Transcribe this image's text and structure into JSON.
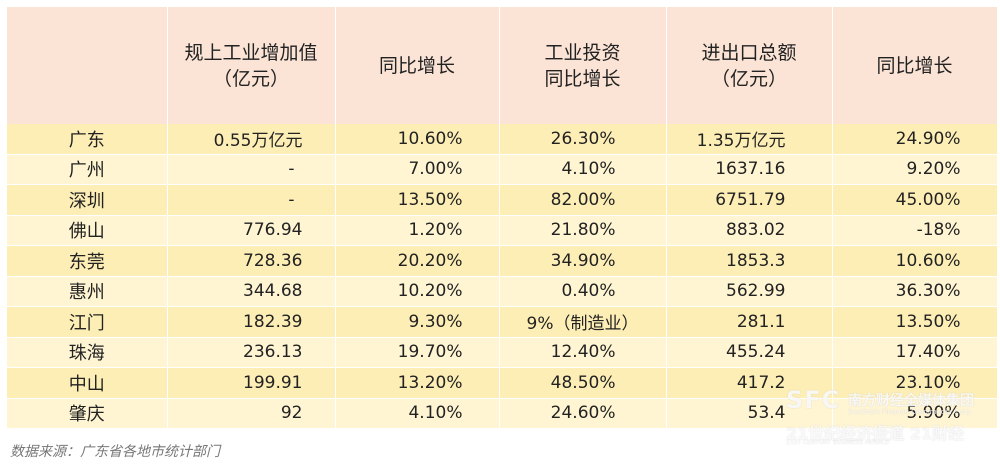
{
  "table": {
    "headers": [
      {
        "lines": [
          ""
        ]
      },
      {
        "lines": [
          "规上工业增加值",
          "（亿元）"
        ]
      },
      {
        "lines": [
          "同比增长"
        ]
      },
      {
        "lines": [
          "工业投资",
          "同比增长"
        ]
      },
      {
        "lines": [
          "进出口总额",
          "（亿元）"
        ]
      },
      {
        "lines": [
          "同比增长"
        ]
      }
    ],
    "rows": [
      [
        "广东",
        "0.55万亿元",
        "10.60%",
        "26.30%",
        "1.35万亿元",
        "24.90%"
      ],
      [
        "广州",
        "-",
        "7.00%",
        "4.10%",
        "1637.16",
        "9.20%"
      ],
      [
        "深圳",
        "-",
        "13.50%",
        "82.00%",
        "6751.79",
        "45.00%"
      ],
      [
        "佛山",
        "776.94",
        "1.20%",
        "21.80%",
        "883.02",
        "-18%"
      ],
      [
        "东莞",
        "728.36",
        "20.20%",
        "34.90%",
        "1853.3",
        "10.60%"
      ],
      [
        "惠州",
        "344.68",
        "10.20%",
        "0.40%",
        "562.99",
        "36.30%"
      ],
      [
        "江门",
        "182.39",
        "9.30%",
        "9%（制造业）",
        "281.1",
        "13.50%"
      ],
      [
        "珠海",
        "236.13",
        "19.70%",
        "12.40%",
        "455.24",
        "17.40%"
      ],
      [
        "中山",
        "199.91",
        "13.20%",
        "48.50%",
        "417.2",
        "23.10%"
      ],
      [
        "肇庆",
        "92",
        "4.10%",
        "24.60%",
        "53.4",
        "5.90%"
      ]
    ]
  },
  "source": "数据来源：广东省各地市统计部门",
  "watermark": {
    "logo": "SFC",
    "group": "南方财经全媒体集团",
    "group_en": "Southern Finance Omnimedia Corp.",
    "brand": "21世纪经济报道 21财经",
    "brand_en": "21ST CENTURY BUSINESS HERALD"
  },
  "colors": {
    "header_bg": "#fbe4d6",
    "row_odd_bg": "#fdeeb6",
    "row_even_bg": "#fff5d3"
  }
}
